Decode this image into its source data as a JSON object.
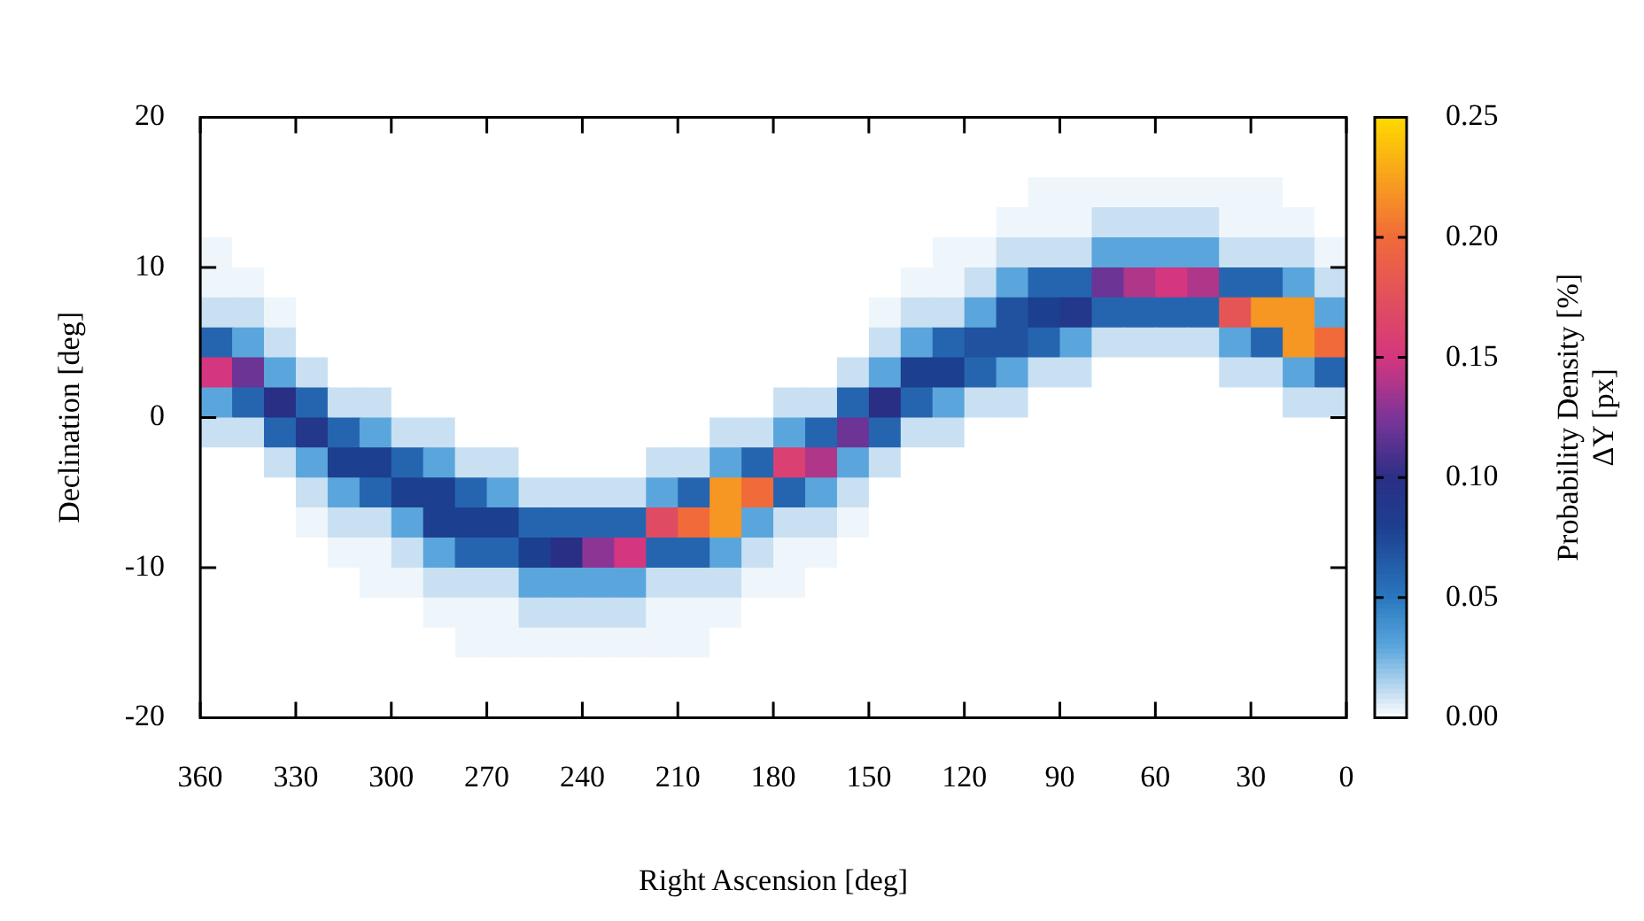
{
  "chart_data": {
    "type": "heatmap",
    "xlabel": "Right Ascension [deg]",
    "ylabel": "Declination [deg]",
    "clabel": "Probability Density [%]\nΔY [px]",
    "xlim": [
      360,
      0
    ],
    "xticks": [
      360,
      330,
      300,
      270,
      240,
      210,
      180,
      150,
      120,
      90,
      60,
      30,
      0
    ],
    "ylim": [
      -20,
      20
    ],
    "yticks": [
      -20,
      -10,
      0,
      10,
      20
    ],
    "clim": [
      0,
      0.25
    ],
    "cticks": [
      {
        "value": 0,
        "label": "0.00"
      },
      {
        "value": 0.05,
        "label": "0.05"
      },
      {
        "value": 0.1,
        "label": "0.10"
      },
      {
        "value": 0.15,
        "label": "0.15"
      },
      {
        "value": 0.2,
        "label": "0.20"
      },
      {
        "value": 0.25,
        "label": "0.25"
      }
    ],
    "x": [
      355,
      345,
      335,
      325,
      315,
      305,
      295,
      285,
      275,
      265,
      255,
      245,
      235,
      225,
      215,
      205,
      195,
      185,
      175,
      165,
      155,
      145,
      135,
      125,
      115,
      105,
      95,
      85,
      75,
      65,
      55,
      45,
      35,
      25,
      15,
      5
    ],
    "y": [
      19,
      17,
      15,
      13,
      11,
      9,
      7,
      5,
      3,
      1,
      -1,
      -3,
      -5,
      -7,
      -9,
      -11,
      -13,
      -15,
      -17,
      -19
    ],
    "cells": [
      [
        0,
        0,
        0,
        0,
        0,
        0,
        0,
        0,
        0,
        0,
        0,
        0,
        0,
        0,
        0,
        0,
        0,
        0,
        0,
        0,
        0,
        0,
        0,
        0,
        0,
        0,
        0,
        0,
        0,
        0,
        0,
        0,
        0,
        0,
        0,
        0
      ],
      [
        0,
        0,
        0,
        0,
        0,
        0,
        0,
        0,
        0,
        0,
        0,
        0,
        0,
        0,
        0,
        0,
        0,
        0,
        0,
        0,
        0,
        0,
        0,
        0,
        0,
        0,
        0,
        0,
        0,
        0,
        0,
        0,
        0,
        0,
        0,
        0
      ],
      [
        0,
        0,
        0,
        0,
        0,
        0,
        0,
        0,
        0,
        0,
        0,
        0,
        0,
        0,
        0,
        0,
        0,
        0,
        0,
        0,
        0,
        0,
        0,
        0,
        0,
        0,
        0.003,
        0.003,
        0.003,
        0.003,
        0.003,
        0.003,
        0.003,
        0.003,
        0,
        0
      ],
      [
        0,
        0,
        0,
        0,
        0,
        0,
        0,
        0,
        0,
        0,
        0,
        0,
        0,
        0,
        0,
        0,
        0,
        0,
        0,
        0,
        0,
        0,
        0,
        0,
        0,
        0.003,
        0.003,
        0.003,
        0.01,
        0.01,
        0.01,
        0.01,
        0.003,
        0.003,
        0.003,
        0
      ],
      [
        0.003,
        0,
        0,
        0,
        0,
        0,
        0,
        0,
        0,
        0,
        0,
        0,
        0,
        0,
        0,
        0,
        0,
        0,
        0,
        0,
        0,
        0,
        0,
        0.003,
        0.003,
        0.01,
        0.01,
        0.01,
        0.03,
        0.03,
        0.03,
        0.03,
        0.01,
        0.01,
        0.01,
        0.003
      ],
      [
        0.003,
        0.003,
        0,
        0,
        0,
        0,
        0,
        0,
        0,
        0,
        0,
        0,
        0,
        0,
        0,
        0,
        0,
        0,
        0,
        0,
        0,
        0,
        0.003,
        0.003,
        0.01,
        0.03,
        0.06,
        0.06,
        0.12,
        0.14,
        0.15,
        0.14,
        0.06,
        0.06,
        0.03,
        0.01
      ],
      [
        0.01,
        0.01,
        0.003,
        0,
        0,
        0,
        0,
        0,
        0,
        0,
        0,
        0,
        0,
        0,
        0,
        0,
        0,
        0,
        0,
        0,
        0,
        0.003,
        0.01,
        0.01,
        0.03,
        0.07,
        0.08,
        0.09,
        0.06,
        0.06,
        0.06,
        0.06,
        0.18,
        0.22,
        0.22,
        0.03
      ],
      [
        0.06,
        0.03,
        0.01,
        0,
        0,
        0,
        0,
        0,
        0,
        0,
        0,
        0,
        0,
        0,
        0,
        0,
        0,
        0,
        0,
        0,
        0,
        0.01,
        0.03,
        0.06,
        0.07,
        0.07,
        0.06,
        0.03,
        0.01,
        0.01,
        0.01,
        0.01,
        0.03,
        0.06,
        0.22,
        0.2
      ],
      [
        0.15,
        0.12,
        0.03,
        0.01,
        0,
        0,
        0,
        0,
        0,
        0,
        0,
        0,
        0,
        0,
        0,
        0,
        0,
        0,
        0,
        0,
        0.01,
        0.03,
        0.08,
        0.08,
        0.06,
        0.03,
        0.01,
        0.01,
        0,
        0,
        0,
        0,
        0.01,
        0.01,
        0.03,
        0.06
      ],
      [
        0.03,
        0.06,
        0.1,
        0.06,
        0.01,
        0.01,
        0,
        0,
        0,
        0,
        0,
        0,
        0,
        0,
        0,
        0,
        0,
        0,
        0.01,
        0.01,
        0.06,
        0.1,
        0.06,
        0.03,
        0.01,
        0.01,
        0,
        0,
        0,
        0,
        0,
        0,
        0,
        0,
        0.01,
        0.01
      ],
      [
        0.01,
        0.01,
        0.06,
        0.09,
        0.06,
        0.03,
        0.01,
        0.01,
        0,
        0,
        0,
        0,
        0,
        0,
        0,
        0,
        0.01,
        0.01,
        0.03,
        0.06,
        0.12,
        0.06,
        0.01,
        0.01,
        0,
        0,
        0,
        0,
        0,
        0,
        0,
        0,
        0,
        0,
        0,
        0
      ],
      [
        0,
        0,
        0.01,
        0.03,
        0.08,
        0.08,
        0.06,
        0.03,
        0.01,
        0.01,
        0,
        0,
        0,
        0,
        0.01,
        0.01,
        0.03,
        0.06,
        0.16,
        0.14,
        0.03,
        0.01,
        0,
        0,
        0,
        0,
        0,
        0,
        0,
        0,
        0,
        0,
        0,
        0,
        0,
        0
      ],
      [
        0,
        0,
        0,
        0.01,
        0.03,
        0.06,
        0.08,
        0.08,
        0.06,
        0.03,
        0.01,
        0.01,
        0.01,
        0.01,
        0.03,
        0.06,
        0.22,
        0.2,
        0.06,
        0.03,
        0.01,
        0,
        0,
        0,
        0,
        0,
        0,
        0,
        0,
        0,
        0,
        0,
        0,
        0,
        0,
        0
      ],
      [
        0,
        0,
        0,
        0.003,
        0.01,
        0.01,
        0.03,
        0.08,
        0.08,
        0.08,
        0.06,
        0.06,
        0.06,
        0.06,
        0.17,
        0.2,
        0.22,
        0.03,
        0.01,
        0.01,
        0.003,
        0,
        0,
        0,
        0,
        0,
        0,
        0,
        0,
        0,
        0,
        0,
        0,
        0,
        0,
        0
      ],
      [
        0,
        0,
        0,
        0,
        0.003,
        0.003,
        0.01,
        0.03,
        0.06,
        0.06,
        0.08,
        0.1,
        0.13,
        0.15,
        0.06,
        0.06,
        0.03,
        0.01,
        0.003,
        0.003,
        0,
        0,
        0,
        0,
        0,
        0,
        0,
        0,
        0,
        0,
        0,
        0,
        0,
        0,
        0,
        0
      ],
      [
        0,
        0,
        0,
        0,
        0,
        0.003,
        0.003,
        0.01,
        0.01,
        0.01,
        0.03,
        0.03,
        0.03,
        0.03,
        0.01,
        0.01,
        0.01,
        0.003,
        0.003,
        0,
        0,
        0,
        0,
        0,
        0,
        0,
        0,
        0,
        0,
        0,
        0,
        0,
        0,
        0,
        0,
        0
      ],
      [
        0,
        0,
        0,
        0,
        0,
        0,
        0,
        0.003,
        0.003,
        0.003,
        0.01,
        0.01,
        0.01,
        0.01,
        0.003,
        0.003,
        0.003,
        0,
        0,
        0,
        0,
        0,
        0,
        0,
        0,
        0,
        0,
        0,
        0,
        0,
        0,
        0,
        0,
        0,
        0,
        0
      ],
      [
        0,
        0,
        0,
        0,
        0,
        0,
        0,
        0,
        0.003,
        0.003,
        0.003,
        0.003,
        0.003,
        0.003,
        0.003,
        0.003,
        0,
        0,
        0,
        0,
        0,
        0,
        0,
        0,
        0,
        0,
        0,
        0,
        0,
        0,
        0,
        0,
        0,
        0,
        0,
        0
      ],
      [
        0,
        0,
        0,
        0,
        0,
        0,
        0,
        0,
        0,
        0,
        0,
        0,
        0,
        0,
        0,
        0,
        0,
        0,
        0,
        0,
        0,
        0,
        0,
        0,
        0,
        0,
        0,
        0,
        0,
        0,
        0,
        0,
        0,
        0,
        0,
        0
      ],
      [
        0,
        0,
        0,
        0,
        0,
        0,
        0,
        0,
        0,
        0,
        0,
        0,
        0,
        0,
        0,
        0,
        0,
        0,
        0,
        0,
        0,
        0,
        0,
        0,
        0,
        0,
        0,
        0,
        0,
        0,
        0,
        0,
        0,
        0,
        0,
        0
      ]
    ]
  }
}
